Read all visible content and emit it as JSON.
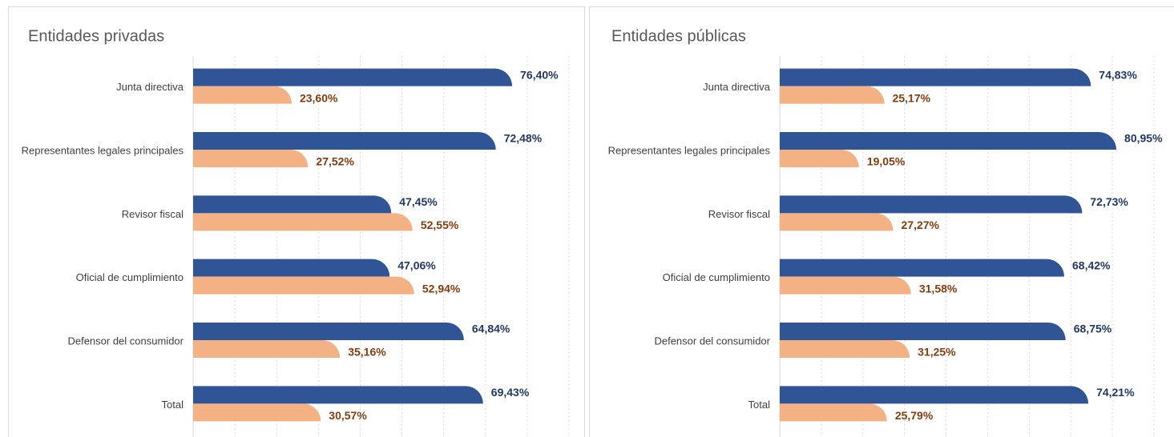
{
  "chart_data": [
    {
      "type": "barh",
      "title": "Entidades privadas",
      "categories": [
        "Junta directiva",
        "Representantes legales principales",
        "Revisor fiscal",
        "Oficial de cumplimiento",
        "Defensor del consumidor",
        "Total"
      ],
      "series": [
        {
          "color": "#2f5597",
          "label_color": "#203864",
          "values": [
            76.4,
            72.48,
            47.45,
            47.06,
            64.84,
            69.43
          ],
          "value_labels": [
            "76,40%",
            "72,48%",
            "47,45%",
            "47,06%",
            "64,84%",
            "69,43%"
          ]
        },
        {
          "color": "#f4b183",
          "label_color": "#843c0c",
          "values": [
            23.6,
            27.52,
            52.55,
            52.94,
            35.16,
            30.57
          ],
          "value_labels": [
            "23,60%",
            "27,52%",
            "52,55%",
            "52,94%",
            "35,16%",
            "30,57%"
          ]
        }
      ],
      "xlim": [
        0,
        90
      ],
      "xticks": [
        0,
        10,
        20,
        30,
        40,
        50,
        60,
        70,
        80,
        90
      ],
      "grid": true
    },
    {
      "type": "barh",
      "title": "Entidades públicas",
      "categories": [
        "Junta directiva",
        "Representantes legales principales",
        "Revisor fiscal",
        "Oficial de cumplimiento",
        "Defensor del consumidor",
        "Total"
      ],
      "series": [
        {
          "color": "#2f5597",
          "label_color": "#203864",
          "values": [
            74.83,
            80.95,
            72.73,
            68.42,
            68.75,
            74.21
          ],
          "value_labels": [
            "74,83%",
            "80,95%",
            "72,73%",
            "68,42%",
            "68,75%",
            "74,21%"
          ]
        },
        {
          "color": "#f4b183",
          "label_color": "#843c0c",
          "values": [
            25.17,
            19.05,
            27.27,
            31.58,
            31.25,
            25.79
          ],
          "value_labels": [
            "25,17%",
            "19,05%",
            "27,27%",
            "31,58%",
            "31,25%",
            "25,79%"
          ]
        }
      ],
      "xlim": [
        0,
        90
      ],
      "xticks": [
        0,
        10,
        20,
        30,
        40,
        50,
        60,
        70,
        80,
        90
      ],
      "grid": true
    }
  ]
}
